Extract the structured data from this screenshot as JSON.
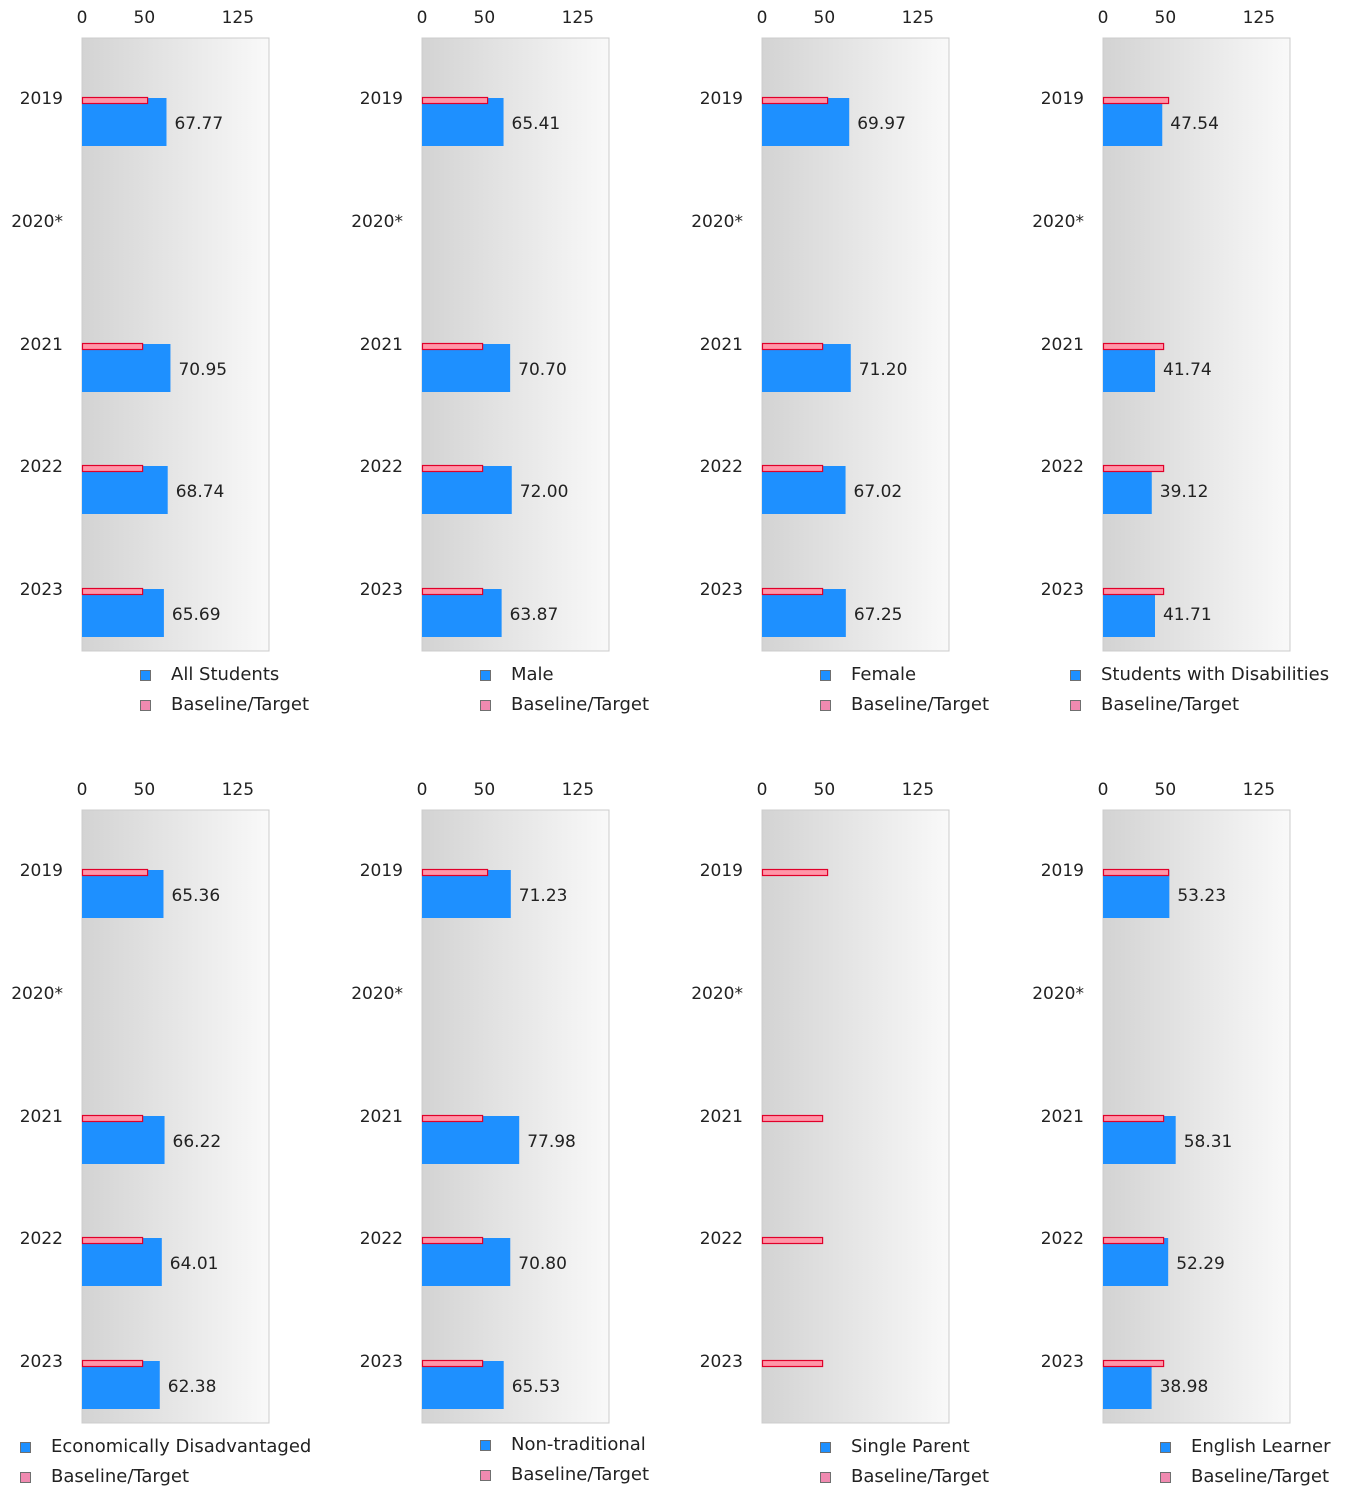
{
  "colors": {
    "bar": "#1e90ff",
    "target_fill": "#ff96a8",
    "target_stroke": "#e0002a",
    "legend_bar": "#1e90ff",
    "legend_target": "#f08ab0"
  },
  "chart_data": [
    {
      "type": "bar",
      "orientation": "horizontal",
      "categories": [
        "2019",
        "2020*",
        "2021",
        "2022",
        "2023"
      ],
      "xticks": [
        "0",
        "50",
        "125"
      ],
      "xlim": [
        0,
        150
      ],
      "grid": false,
      "legend_position": "bottom",
      "series": [
        {
          "name": "All Students",
          "values": [
            67.77,
            null,
            70.95,
            68.74,
            65.69
          ],
          "labels": [
            "67.77",
            "",
            "70.95",
            "68.74",
            "65.69"
          ]
        },
        {
          "name": "Baseline/Target",
          "values": [
            53,
            null,
            49,
            49,
            49
          ]
        }
      ]
    },
    {
      "type": "bar",
      "orientation": "horizontal",
      "categories": [
        "2019",
        "2020*",
        "2021",
        "2022",
        "2023"
      ],
      "xticks": [
        "0",
        "50",
        "125"
      ],
      "xlim": [
        0,
        150
      ],
      "grid": false,
      "legend_position": "bottom",
      "series": [
        {
          "name": "Male",
          "values": [
            65.41,
            null,
            70.7,
            72.0,
            63.87
          ],
          "labels": [
            "65.41",
            "",
            "70.70",
            "72.00",
            "63.87"
          ]
        },
        {
          "name": "Baseline/Target",
          "values": [
            53,
            null,
            49,
            49,
            49
          ]
        }
      ]
    },
    {
      "type": "bar",
      "orientation": "horizontal",
      "categories": [
        "2019",
        "2020*",
        "2021",
        "2022",
        "2023"
      ],
      "xticks": [
        "0",
        "50",
        "125"
      ],
      "xlim": [
        0,
        150
      ],
      "grid": false,
      "legend_position": "bottom",
      "series": [
        {
          "name": "Female",
          "values": [
            69.97,
            null,
            71.2,
            67.02,
            67.25
          ],
          "labels": [
            "69.97",
            "",
            "71.20",
            "67.02",
            "67.25"
          ]
        },
        {
          "name": "Baseline/Target",
          "values": [
            53,
            null,
            49,
            49,
            49
          ]
        }
      ]
    },
    {
      "type": "bar",
      "orientation": "horizontal",
      "categories": [
        "2019",
        "2020*",
        "2021",
        "2022",
        "2023"
      ],
      "xticks": [
        "0",
        "50",
        "125"
      ],
      "xlim": [
        0,
        150
      ],
      "grid": false,
      "legend_position": "bottom",
      "series": [
        {
          "name": "Students with Disabilities",
          "values": [
            47.54,
            null,
            41.74,
            39.12,
            41.71
          ],
          "labels": [
            "47.54",
            "",
            "41.74",
            "39.12",
            "41.71"
          ]
        },
        {
          "name": "Baseline/Target",
          "values": [
            53,
            null,
            49,
            49,
            49
          ]
        }
      ]
    },
    {
      "type": "bar",
      "orientation": "horizontal",
      "categories": [
        "2019",
        "2020*",
        "2021",
        "2022",
        "2023"
      ],
      "xticks": [
        "0",
        "50",
        "125"
      ],
      "xlim": [
        0,
        150
      ],
      "grid": false,
      "legend_position": "bottom",
      "series": [
        {
          "name": "Economically Disadvantaged",
          "values": [
            65.36,
            null,
            66.22,
            64.01,
            62.38
          ],
          "labels": [
            "65.36",
            "",
            "66.22",
            "64.01",
            "62.38"
          ]
        },
        {
          "name": "Baseline/Target",
          "values": [
            53,
            null,
            49,
            49,
            49
          ]
        }
      ]
    },
    {
      "type": "bar",
      "orientation": "horizontal",
      "categories": [
        "2019",
        "2020*",
        "2021",
        "2022",
        "2023"
      ],
      "xticks": [
        "0",
        "50",
        "125"
      ],
      "xlim": [
        0,
        150
      ],
      "grid": false,
      "legend_position": "bottom",
      "series": [
        {
          "name": "Non-traditional",
          "values": [
            71.23,
            null,
            77.98,
            70.8,
            65.53
          ],
          "labels": [
            "71.23",
            "",
            "77.98",
            "70.80",
            "65.53"
          ]
        },
        {
          "name": "Baseline/Target",
          "values": [
            53,
            null,
            49,
            49,
            49
          ]
        }
      ]
    },
    {
      "type": "bar",
      "orientation": "horizontal",
      "categories": [
        "2019",
        "2020*",
        "2021",
        "2022",
        "2023"
      ],
      "xticks": [
        "0",
        "50",
        "125"
      ],
      "xlim": [
        0,
        150
      ],
      "grid": false,
      "legend_position": "bottom",
      "series": [
        {
          "name": "Single Parent",
          "values": [
            null,
            null,
            null,
            null,
            null
          ],
          "labels": [
            "",
            "",
            "",
            "",
            ""
          ]
        },
        {
          "name": "Baseline/Target",
          "values": [
            53,
            null,
            49,
            49,
            49
          ]
        }
      ]
    },
    {
      "type": "bar",
      "orientation": "horizontal",
      "categories": [
        "2019",
        "2020*",
        "2021",
        "2022",
        "2023"
      ],
      "xticks": [
        "0",
        "50",
        "125"
      ],
      "xlim": [
        0,
        150
      ],
      "grid": false,
      "legend_position": "bottom",
      "series": [
        {
          "name": "English Learner",
          "values": [
            53.23,
            null,
            58.31,
            52.29,
            38.98
          ],
          "labels": [
            "53.23",
            "",
            "58.31",
            "52.29",
            "38.98"
          ]
        },
        {
          "name": "Baseline/Target",
          "values": [
            53,
            null,
            49,
            49,
            49
          ]
        }
      ]
    }
  ]
}
